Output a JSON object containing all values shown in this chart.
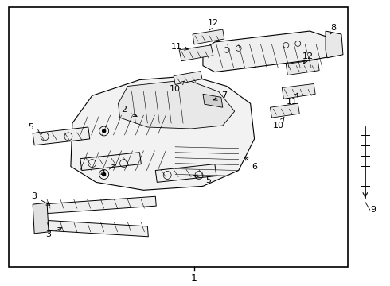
{
  "bg_color": "#ffffff",
  "line_color": "#000000",
  "text_color": "#000000",
  "figsize": [
    4.9,
    3.6
  ],
  "dpi": 100
}
